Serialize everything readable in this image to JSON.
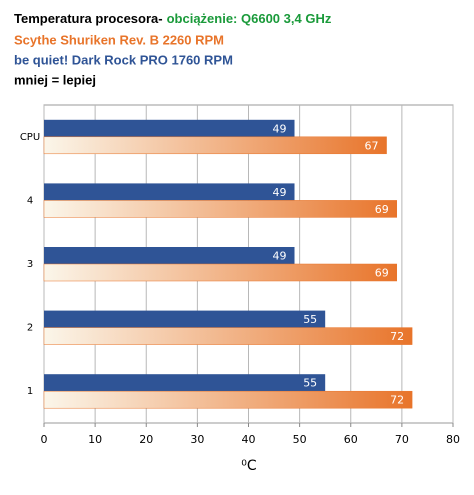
{
  "chart_data": {
    "type": "hbar",
    "title": [
      "Temperatura procesora-",
      "obciążenie: Q6600 3,4 GHz"
    ],
    "note": "mniej = lepiej",
    "x_label": "⁰C",
    "categories": [
      "CPU",
      "4",
      "3",
      "2",
      "1"
    ],
    "series": [
      {
        "name": "Scythe Shuriken Rev. B 2260  RPM",
        "color": "#e8742a",
        "values": [
          67,
          69,
          69,
          72,
          72
        ]
      },
      {
        "name": "be quiet! Dark Rock PRO 1760  RPM",
        "color": "#2f5496",
        "values": [
          49,
          49,
          49,
          55,
          55
        ]
      }
    ],
    "xlim": [
      0,
      80
    ],
    "xticks": [
      0,
      10,
      20,
      30,
      40,
      50,
      60,
      70,
      80
    ],
    "grid": true
  }
}
